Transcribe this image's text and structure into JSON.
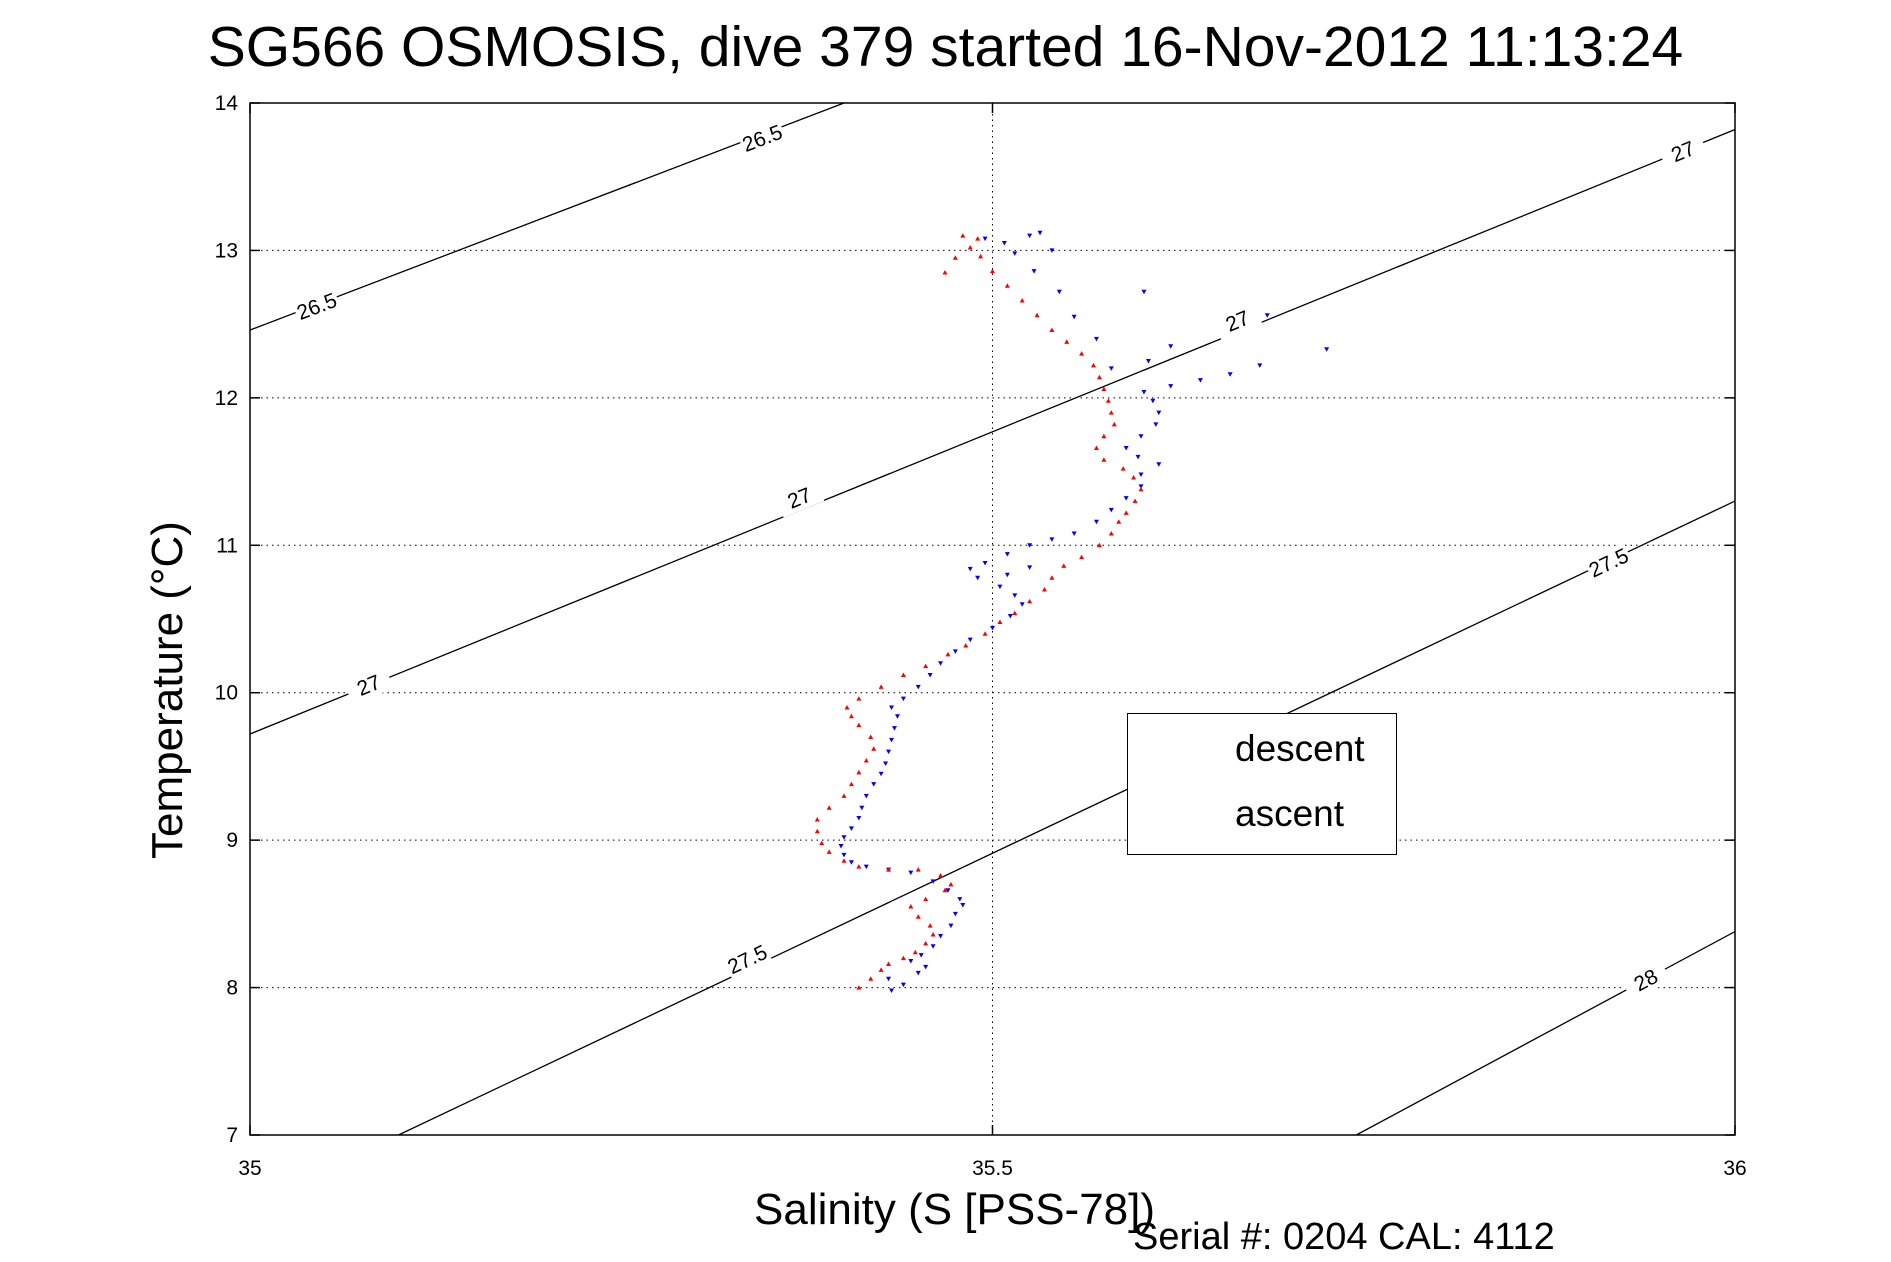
{
  "header": {
    "title": "SG566 OSMOSIS, dive 379 started 16-Nov-2012 11:13:24"
  },
  "footer": {
    "text": "Serial #: 0204  CAL: 4112"
  },
  "chart_data": {
    "type": "scatter",
    "title": "SG566 OSMOSIS, dive 379 started 16-Nov-2012 11:13:24",
    "xlabel": "Salinity (S [PSS-78])",
    "ylabel": "Temperature (°C)",
    "xlim": [
      35,
      36
    ],
    "ylim": [
      7,
      14
    ],
    "xticks": [
      35,
      35.5,
      36
    ],
    "xtick_labels": [
      "35",
      "35.5",
      "36"
    ],
    "yticks": [
      7,
      8,
      9,
      10,
      11,
      12,
      13,
      14
    ],
    "ytick_labels": [
      "7",
      "8",
      "9",
      "10",
      "11",
      "12",
      "13",
      "14"
    ],
    "grid": "dotted",
    "legend_position": "center-right",
    "density_contours": [
      {
        "level": "26.5",
        "line": [
          [
            35.0,
            12.46
          ],
          [
            35.4,
            14.0
          ]
        ],
        "labels": [
          [
            35.045,
            12.62
          ],
          [
            35.345,
            13.76
          ]
        ]
      },
      {
        "level": "27",
        "line": [
          [
            35.0,
            9.72
          ],
          [
            36.0,
            13.82
          ]
        ],
        "labels": [
          [
            35.08,
            10.05
          ],
          [
            35.37,
            11.32
          ],
          [
            35.665,
            12.52
          ],
          [
            35.965,
            13.67
          ]
        ]
      },
      {
        "level": "27.5",
        "line": [
          [
            35.1,
            7.0
          ],
          [
            36.0,
            11.3
          ]
        ],
        "labels": [
          [
            35.335,
            8.19
          ],
          [
            35.915,
            10.88
          ]
        ]
      },
      {
        "level": "28",
        "line": [
          [
            35.745,
            7.0
          ],
          [
            36.0,
            8.38
          ]
        ],
        "labels": [
          [
            35.94,
            8.05
          ]
        ]
      }
    ],
    "series": [
      {
        "name": "descent",
        "color": "#0000ff",
        "marker": "triangle-down",
        "points": [
          [
            35.432,
            7.98
          ],
          [
            35.44,
            8.02
          ],
          [
            35.43,
            8.06
          ],
          [
            35.45,
            8.1
          ],
          [
            35.455,
            8.14
          ],
          [
            35.445,
            8.18
          ],
          [
            35.452,
            8.22
          ],
          [
            35.46,
            8.28
          ],
          [
            35.465,
            8.35
          ],
          [
            35.472,
            8.42
          ],
          [
            35.475,
            8.5
          ],
          [
            35.48,
            8.56
          ],
          [
            35.478,
            8.6
          ],
          [
            35.47,
            8.66
          ],
          [
            35.46,
            8.72
          ],
          [
            35.445,
            8.78
          ],
          [
            35.43,
            8.8
          ],
          [
            35.415,
            8.82
          ],
          [
            35.405,
            8.85
          ],
          [
            35.4,
            8.9
          ],
          [
            35.398,
            8.96
          ],
          [
            35.4,
            9.02
          ],
          [
            35.405,
            9.08
          ],
          [
            35.41,
            9.15
          ],
          [
            35.412,
            9.22
          ],
          [
            35.415,
            9.3
          ],
          [
            35.42,
            9.38
          ],
          [
            35.425,
            9.45
          ],
          [
            35.428,
            9.52
          ],
          [
            35.43,
            9.6
          ],
          [
            35.432,
            9.68
          ],
          [
            35.434,
            9.76
          ],
          [
            35.436,
            9.84
          ],
          [
            35.432,
            9.9
          ],
          [
            35.44,
            9.96
          ],
          [
            35.45,
            10.04
          ],
          [
            35.458,
            10.12
          ],
          [
            35.465,
            10.2
          ],
          [
            35.475,
            10.28
          ],
          [
            35.485,
            10.36
          ],
          [
            35.5,
            10.44
          ],
          [
            35.512,
            10.52
          ],
          [
            35.52,
            10.6
          ],
          [
            35.515,
            10.66
          ],
          [
            35.505,
            10.72
          ],
          [
            35.49,
            10.78
          ],
          [
            35.485,
            10.84
          ],
          [
            35.495,
            10.88
          ],
          [
            35.51,
            10.94
          ],
          [
            35.525,
            11.0
          ],
          [
            35.54,
            11.04
          ],
          [
            35.555,
            11.08
          ],
          [
            35.57,
            11.16
          ],
          [
            35.58,
            11.24
          ],
          [
            35.59,
            11.32
          ],
          [
            35.6,
            11.4
          ],
          [
            35.6,
            11.48
          ],
          [
            35.612,
            11.55
          ],
          [
            35.598,
            11.6
          ],
          [
            35.59,
            11.66
          ],
          [
            35.6,
            11.74
          ],
          [
            35.61,
            11.82
          ],
          [
            35.612,
            11.9
          ],
          [
            35.608,
            11.98
          ],
          [
            35.602,
            12.04
          ],
          [
            35.62,
            12.08
          ],
          [
            35.64,
            12.12
          ],
          [
            35.66,
            12.16
          ],
          [
            35.68,
            12.22
          ],
          [
            35.725,
            12.33
          ],
          [
            35.605,
            12.25
          ],
          [
            35.58,
            12.2
          ],
          [
            35.57,
            12.4
          ],
          [
            35.555,
            12.55
          ],
          [
            35.545,
            12.72
          ],
          [
            35.528,
            12.86
          ],
          [
            35.515,
            12.98
          ],
          [
            35.508,
            13.05
          ],
          [
            35.495,
            13.08
          ],
          [
            35.525,
            13.1
          ],
          [
            35.532,
            13.12
          ],
          [
            35.602,
            12.72
          ],
          [
            35.62,
            12.35
          ],
          [
            35.685,
            12.56
          ],
          [
            35.54,
            13.0
          ],
          [
            35.51,
            10.8
          ],
          [
            35.525,
            10.85
          ]
        ]
      },
      {
        "name": "ascent",
        "color": "#ff0000",
        "marker": "triangle-up",
        "points": [
          [
            35.41,
            8.0
          ],
          [
            35.418,
            8.06
          ],
          [
            35.425,
            8.12
          ],
          [
            35.43,
            8.16
          ],
          [
            35.44,
            8.2
          ],
          [
            35.448,
            8.24
          ],
          [
            35.455,
            8.3
          ],
          [
            35.46,
            8.36
          ],
          [
            35.458,
            8.42
          ],
          [
            35.45,
            8.48
          ],
          [
            35.445,
            8.55
          ],
          [
            35.455,
            8.6
          ],
          [
            35.468,
            8.66
          ],
          [
            35.472,
            8.7
          ],
          [
            35.465,
            8.76
          ],
          [
            35.45,
            8.8
          ],
          [
            35.43,
            8.8
          ],
          [
            35.41,
            8.82
          ],
          [
            35.4,
            8.86
          ],
          [
            35.39,
            8.92
          ],
          [
            35.385,
            8.98
          ],
          [
            35.382,
            9.06
          ],
          [
            35.382,
            9.14
          ],
          [
            35.39,
            9.22
          ],
          [
            35.4,
            9.3
          ],
          [
            35.405,
            9.38
          ],
          [
            35.41,
            9.46
          ],
          [
            35.415,
            9.54
          ],
          [
            35.42,
            9.62
          ],
          [
            35.418,
            9.7
          ],
          [
            35.41,
            9.78
          ],
          [
            35.405,
            9.84
          ],
          [
            35.402,
            9.9
          ],
          [
            35.41,
            9.96
          ],
          [
            35.425,
            10.04
          ],
          [
            35.44,
            10.12
          ],
          [
            35.455,
            10.18
          ],
          [
            35.47,
            10.26
          ],
          [
            35.482,
            10.32
          ],
          [
            35.495,
            10.4
          ],
          [
            35.505,
            10.48
          ],
          [
            35.515,
            10.54
          ],
          [
            35.525,
            10.62
          ],
          [
            35.535,
            10.7
          ],
          [
            35.54,
            10.78
          ],
          [
            35.548,
            10.86
          ],
          [
            35.56,
            10.92
          ],
          [
            35.572,
            11.0
          ],
          [
            35.58,
            11.08
          ],
          [
            35.585,
            11.16
          ],
          [
            35.59,
            11.22
          ],
          [
            35.596,
            11.3
          ],
          [
            35.6,
            11.38
          ],
          [
            35.595,
            11.46
          ],
          [
            35.588,
            11.52
          ],
          [
            35.575,
            11.58
          ],
          [
            35.57,
            11.66
          ],
          [
            35.575,
            11.74
          ],
          [
            35.582,
            11.82
          ],
          [
            35.58,
            11.9
          ],
          [
            35.578,
            11.98
          ],
          [
            35.575,
            12.06
          ],
          [
            35.572,
            12.14
          ],
          [
            35.568,
            12.22
          ],
          [
            35.56,
            12.3
          ],
          [
            35.55,
            12.38
          ],
          [
            35.54,
            12.46
          ],
          [
            35.53,
            12.56
          ],
          [
            35.52,
            12.66
          ],
          [
            35.51,
            12.76
          ],
          [
            35.5,
            12.86
          ],
          [
            35.492,
            12.96
          ],
          [
            35.485,
            13.02
          ],
          [
            35.49,
            13.08
          ],
          [
            35.48,
            13.1
          ],
          [
            35.475,
            12.95
          ],
          [
            35.468,
            12.85
          ]
        ]
      }
    ]
  }
}
